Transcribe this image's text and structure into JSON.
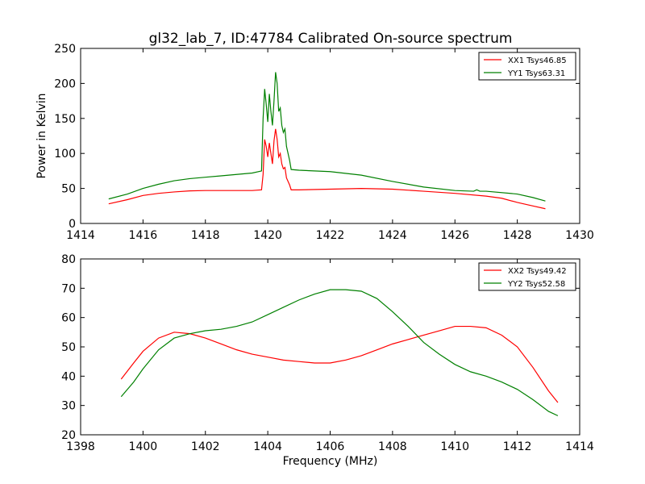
{
  "title": "gl32_lab_7, ID:47784 Calibrated On-source spectrum",
  "colors": {
    "red": "#ff0000",
    "green": "#008000"
  },
  "chart_data": [
    {
      "type": "line",
      "ylabel": "Power in Kelvin",
      "xlabel": "",
      "xlim": [
        1414,
        1430
      ],
      "ylim": [
        0,
        250
      ],
      "xticks": [
        "1414",
        "1416",
        "1418",
        "1420",
        "1422",
        "1424",
        "1426",
        "1428",
        "1430"
      ],
      "yticks": [
        "0",
        "50",
        "100",
        "150",
        "200",
        "250"
      ],
      "legend_position": "top-right",
      "series": [
        {
          "name": "XX1 Tsys46.85",
          "color": "#ff0000",
          "points": [
            [
              1414.9,
              28
            ],
            [
              1415.5,
              34
            ],
            [
              1416,
              40
            ],
            [
              1416.5,
              43
            ],
            [
              1417,
              45
            ],
            [
              1417.5,
              46.5
            ],
            [
              1418,
              47
            ],
            [
              1418.5,
              47
            ],
            [
              1419,
              47
            ],
            [
              1419.5,
              47
            ],
            [
              1419.8,
              48
            ],
            [
              1419.85,
              70
            ],
            [
              1419.9,
              120
            ],
            [
              1419.95,
              110
            ],
            [
              1420.0,
              95
            ],
            [
              1420.05,
              115
            ],
            [
              1420.1,
              100
            ],
            [
              1420.15,
              85
            ],
            [
              1420.2,
              118
            ],
            [
              1420.25,
              135
            ],
            [
              1420.3,
              120
            ],
            [
              1420.35,
              95
            ],
            [
              1420.4,
              100
            ],
            [
              1420.45,
              85
            ],
            [
              1420.5,
              78
            ],
            [
              1420.55,
              80
            ],
            [
              1420.6,
              65
            ],
            [
              1420.7,
              55
            ],
            [
              1420.75,
              48
            ],
            [
              1421,
              48
            ],
            [
              1422,
              49
            ],
            [
              1423,
              50
            ],
            [
              1424,
              49
            ],
            [
              1425,
              46
            ],
            [
              1426,
              43
            ],
            [
              1427,
              39
            ],
            [
              1427.5,
              36
            ],
            [
              1428,
              30
            ],
            [
              1428.5,
              25
            ],
            [
              1428.9,
              21
            ]
          ]
        },
        {
          "name": "YY1 Tsys63.31",
          "color": "#008000",
          "points": [
            [
              1414.9,
              35
            ],
            [
              1415.5,
              42
            ],
            [
              1416,
              50
            ],
            [
              1416.5,
              56
            ],
            [
              1417,
              61
            ],
            [
              1417.5,
              64
            ],
            [
              1418,
              66
            ],
            [
              1418.5,
              68
            ],
            [
              1419,
              70
            ],
            [
              1419.5,
              72
            ],
            [
              1419.8,
              75
            ],
            [
              1419.85,
              150
            ],
            [
              1419.9,
              192
            ],
            [
              1419.95,
              170
            ],
            [
              1420.0,
              145
            ],
            [
              1420.05,
              185
            ],
            [
              1420.1,
              160
            ],
            [
              1420.15,
              140
            ],
            [
              1420.2,
              175
            ],
            [
              1420.25,
              216
            ],
            [
              1420.3,
              200
            ],
            [
              1420.35,
              160
            ],
            [
              1420.4,
              165
            ],
            [
              1420.45,
              140
            ],
            [
              1420.5,
              130
            ],
            [
              1420.55,
              135
            ],
            [
              1420.6,
              110
            ],
            [
              1420.7,
              90
            ],
            [
              1420.75,
              77
            ],
            [
              1421,
              76
            ],
            [
              1422,
              74
            ],
            [
              1423,
              69
            ],
            [
              1424,
              60
            ],
            [
              1425,
              52
            ],
            [
              1426,
              47
            ],
            [
              1426.6,
              46
            ],
            [
              1426.7,
              48
            ],
            [
              1426.8,
              46
            ],
            [
              1427,
              46
            ],
            [
              1428,
              42
            ],
            [
              1428.5,
              37
            ],
            [
              1428.9,
              32
            ]
          ]
        }
      ]
    },
    {
      "type": "line",
      "ylabel": "",
      "xlabel": "Frequency (MHz)",
      "xlim": [
        1398,
        1414
      ],
      "ylim": [
        20,
        80
      ],
      "xticks": [
        "1398",
        "1400",
        "1402",
        "1404",
        "1406",
        "1408",
        "1410",
        "1412",
        "1414"
      ],
      "yticks": [
        "20",
        "30",
        "40",
        "50",
        "60",
        "70",
        "80"
      ],
      "legend_position": "top-right",
      "series": [
        {
          "name": "XX2 Tsys49.42",
          "color": "#ff0000",
          "points": [
            [
              1399.3,
              39
            ],
            [
              1399.7,
              44.5
            ],
            [
              1400,
              48.5
            ],
            [
              1400.5,
              53
            ],
            [
              1401,
              55
            ],
            [
              1401.5,
              54.5
            ],
            [
              1402,
              53
            ],
            [
              1402.5,
              51
            ],
            [
              1403,
              49
            ],
            [
              1403.5,
              47.5
            ],
            [
              1404,
              46.5
            ],
            [
              1404.5,
              45.5
            ],
            [
              1405,
              45
            ],
            [
              1405.5,
              44.5
            ],
            [
              1406,
              44.5
            ],
            [
              1406.5,
              45.5
            ],
            [
              1407,
              47
            ],
            [
              1407.5,
              49
            ],
            [
              1408,
              51
            ],
            [
              1408.5,
              52.5
            ],
            [
              1409,
              54
            ],
            [
              1409.5,
              55.5
            ],
            [
              1410,
              57
            ],
            [
              1410.5,
              57
            ],
            [
              1411,
              56.5
            ],
            [
              1411.5,
              54
            ],
            [
              1412,
              50
            ],
            [
              1412.5,
              43
            ],
            [
              1413,
              35
            ],
            [
              1413.3,
              31
            ]
          ]
        },
        {
          "name": "YY2 Tsys52.58",
          "color": "#008000",
          "points": [
            [
              1399.3,
              33
            ],
            [
              1399.7,
              38
            ],
            [
              1400,
              42.5
            ],
            [
              1400.5,
              49
            ],
            [
              1401,
              53
            ],
            [
              1401.5,
              54.5
            ],
            [
              1402,
              55.5
            ],
            [
              1402.5,
              56
            ],
            [
              1403,
              57
            ],
            [
              1403.5,
              58.5
            ],
            [
              1404,
              61
            ],
            [
              1404.5,
              63.5
            ],
            [
              1405,
              66
            ],
            [
              1405.5,
              68
            ],
            [
              1406,
              69.5
            ],
            [
              1406.5,
              69.5
            ],
            [
              1407,
              69
            ],
            [
              1407.5,
              66.5
            ],
            [
              1408,
              62
            ],
            [
              1408.5,
              57
            ],
            [
              1409,
              51.5
            ],
            [
              1409.5,
              47.5
            ],
            [
              1410,
              44
            ],
            [
              1410.5,
              41.5
            ],
            [
              1411,
              40
            ],
            [
              1411.5,
              38
            ],
            [
              1412,
              35.5
            ],
            [
              1412.5,
              32
            ],
            [
              1413,
              28
            ],
            [
              1413.3,
              26.5
            ]
          ]
        }
      ]
    }
  ]
}
